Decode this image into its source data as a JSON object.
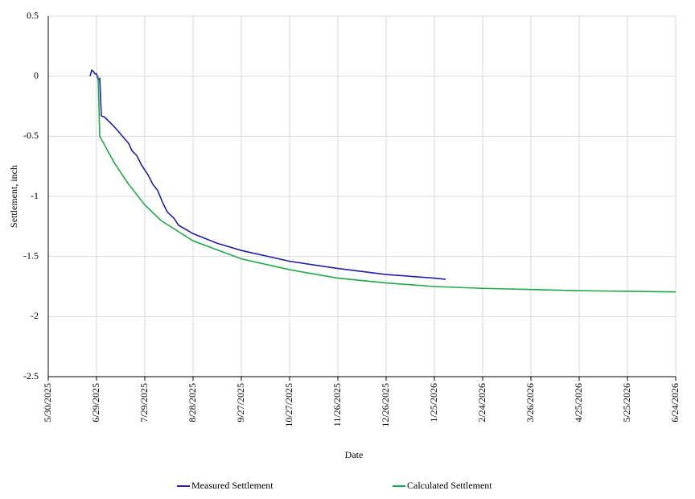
{
  "chart_data": {
    "type": "line",
    "y_label": "Settlement, inch",
    "x_label": "Date",
    "xlim": [
      "5/30/2025",
      "6/24/2026"
    ],
    "xticks": [
      "5/30/2025",
      "6/29/2025",
      "7/29/2025",
      "8/28/2025",
      "9/27/2025",
      "10/27/2025",
      "11/26/2025",
      "12/26/2025",
      "1/25/2026",
      "2/24/2026",
      "3/26/2026",
      "4/25/2026",
      "5/25/2026",
      "6/24/2026"
    ],
    "ylim": [
      -2.5,
      0.5
    ],
    "yticks": [
      0.5,
      0,
      -0.5,
      -1,
      -1.5,
      -2,
      -2.5
    ],
    "grid": true,
    "legend": "bottom",
    "series": [
      {
        "name": "Measured Settlement",
        "color": "#1f1fa8",
        "x": [
          "6/25/2025",
          "6/26/2025",
          "6/27/2025",
          "6/28/2025",
          "6/29/2025",
          "6/30/2025",
          "7/1/2025",
          "7/2/2025",
          "7/4/2025",
          "7/10/2025",
          "7/19/2025",
          "7/21/2025",
          "7/24/2025",
          "7/27/2025",
          "7/31/2025",
          "8/3/2025",
          "8/6/2025",
          "8/9/2025",
          "8/12/2025",
          "8/16/2025",
          "8/19/2025",
          "8/28/2025",
          "9/12/2025",
          "9/27/2025",
          "10/27/2025",
          "11/26/2025",
          "12/26/2025",
          "1/25/2026",
          "2/1/2026"
        ],
        "values": [
          0,
          0.05,
          0.04,
          0.02,
          0.02,
          -0.03,
          -0.02,
          -0.33,
          -0.34,
          -0.42,
          -0.56,
          -0.62,
          -0.66,
          -0.74,
          -0.82,
          -0.9,
          -0.95,
          -1.05,
          -1.13,
          -1.18,
          -1.24,
          -1.31,
          -1.39,
          -1.45,
          -1.54,
          -1.6,
          -1.65,
          -1.68,
          -1.69
        ]
      },
      {
        "name": "Calculated Settlement",
        "color": "#1fa84a",
        "x": [
          "6/30/2025",
          "7/1/2025",
          "7/10/2025",
          "7/19/2025",
          "7/29/2025",
          "8/8/2025",
          "8/28/2025",
          "9/27/2025",
          "10/27/2025",
          "11/26/2025",
          "12/26/2025",
          "1/25/2026",
          "2/24/2026",
          "3/26/2026",
          "4/25/2026",
          "5/25/2026",
          "6/24/2026"
        ],
        "values": [
          0,
          -0.5,
          -0.72,
          -0.9,
          -1.07,
          -1.2,
          -1.37,
          -1.52,
          -1.61,
          -1.68,
          -1.72,
          -1.75,
          -1.765,
          -1.775,
          -1.785,
          -1.79,
          -1.795
        ]
      }
    ]
  }
}
